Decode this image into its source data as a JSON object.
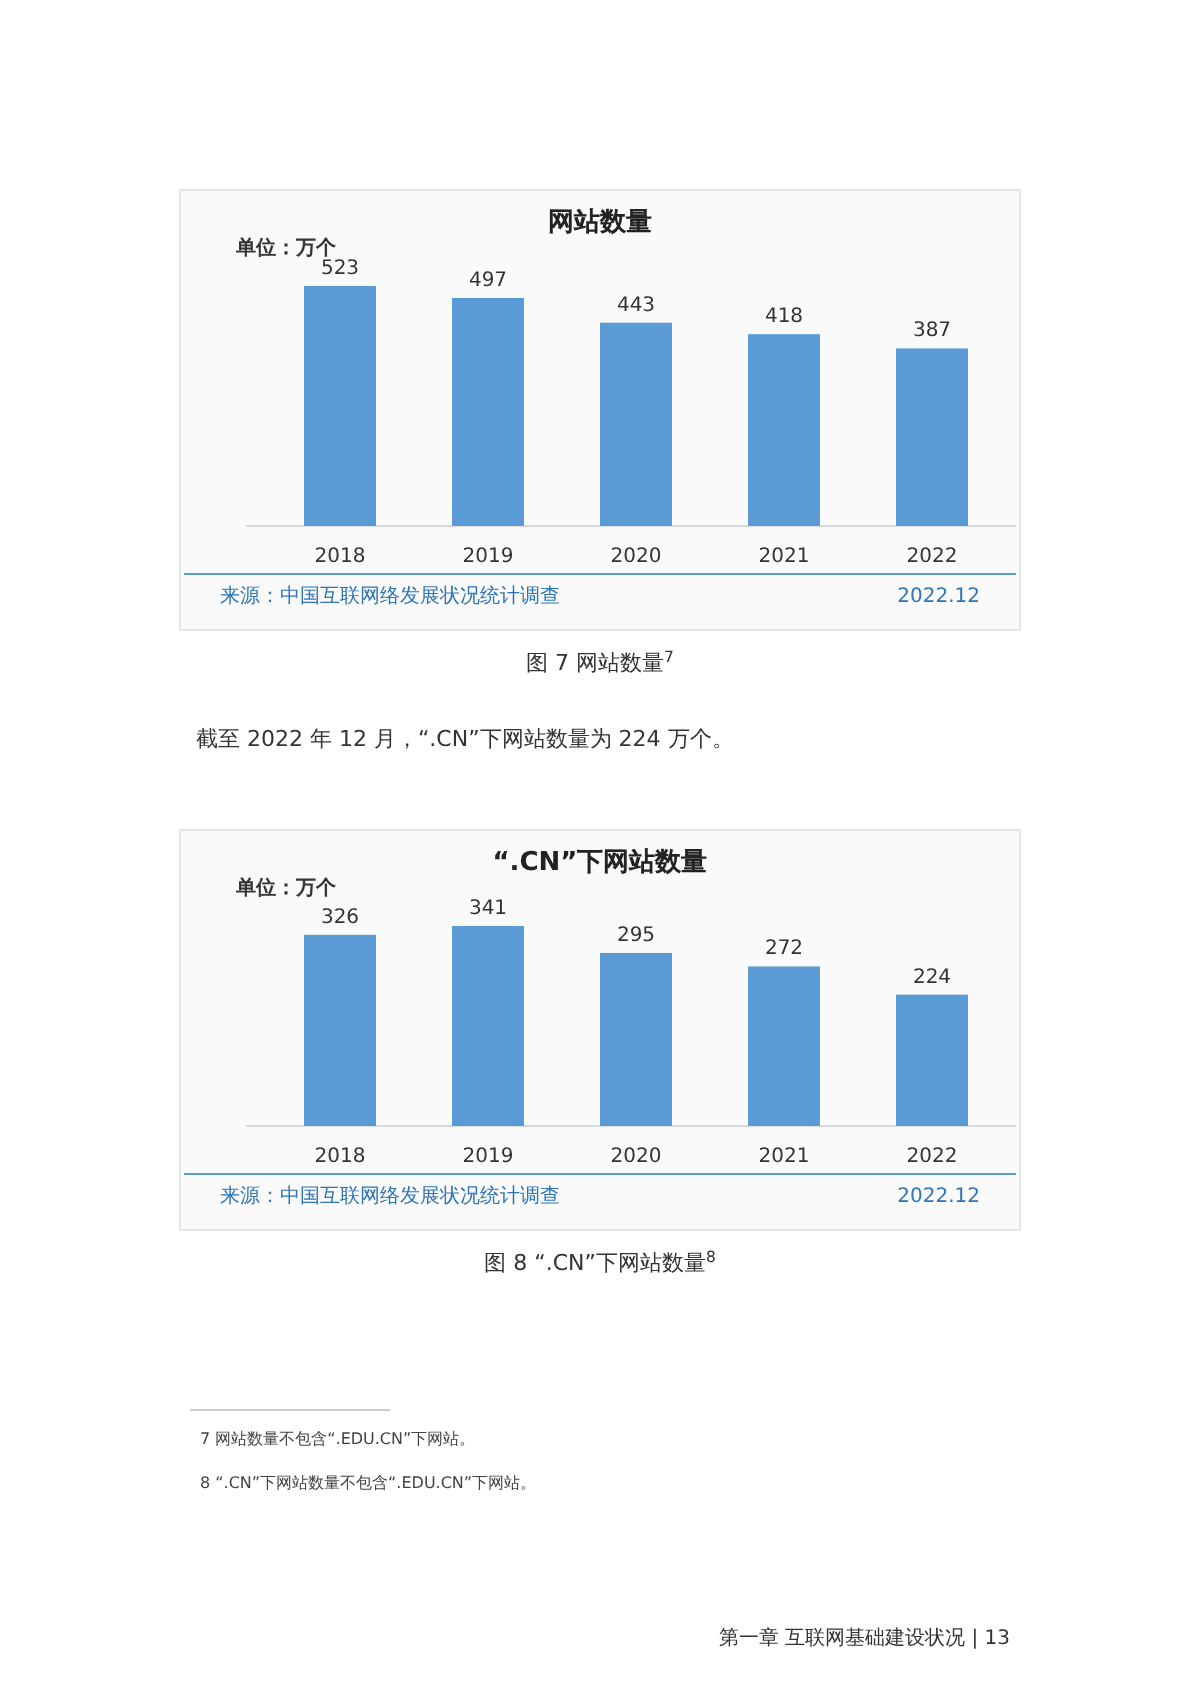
{
  "chart_data": [
    {
      "type": "bar",
      "title": "网站数量",
      "ylabel": "单位：万个",
      "categories": [
        "2018",
        "2019",
        "2020",
        "2021",
        "2022"
      ],
      "values": [
        523,
        497,
        443,
        418,
        387
      ],
      "color": "#5b9bd5",
      "data_labels": true,
      "annotations": [
        "来源：中国互联网络发展状况统计调查",
        "2022.12",
        "图 7  网站数量$^{7}$",
        "截至 2022 年 12 月，“.CN”下网站数量为 224 万个。"
      ]
    },
    {
      "type": "bar",
      "title": "“.CN”下网站数量",
      "ylabel": "单位：万个",
      "categories": [
        "2018",
        "2019",
        "2020",
        "2021",
        "2022"
      ],
      "values": [
        326,
        341,
        295,
        272,
        224
      ],
      "color": "#5b9bd5",
      "data_labels": true,
      "annotations": [
        "来源：中国互联网络发展状况统计调查",
        "2022.12",
        "图 8  “.CN”下网站数量$^{8}$",
        "7    网站数量不包含“.EDU.CN”下网站。",
        "8    “.CN”下网站数量不包含“.EDU.CN”下网站。",
        "第一章  互联网基础建设状况 | 13"
      ]
    }
  ]
}
